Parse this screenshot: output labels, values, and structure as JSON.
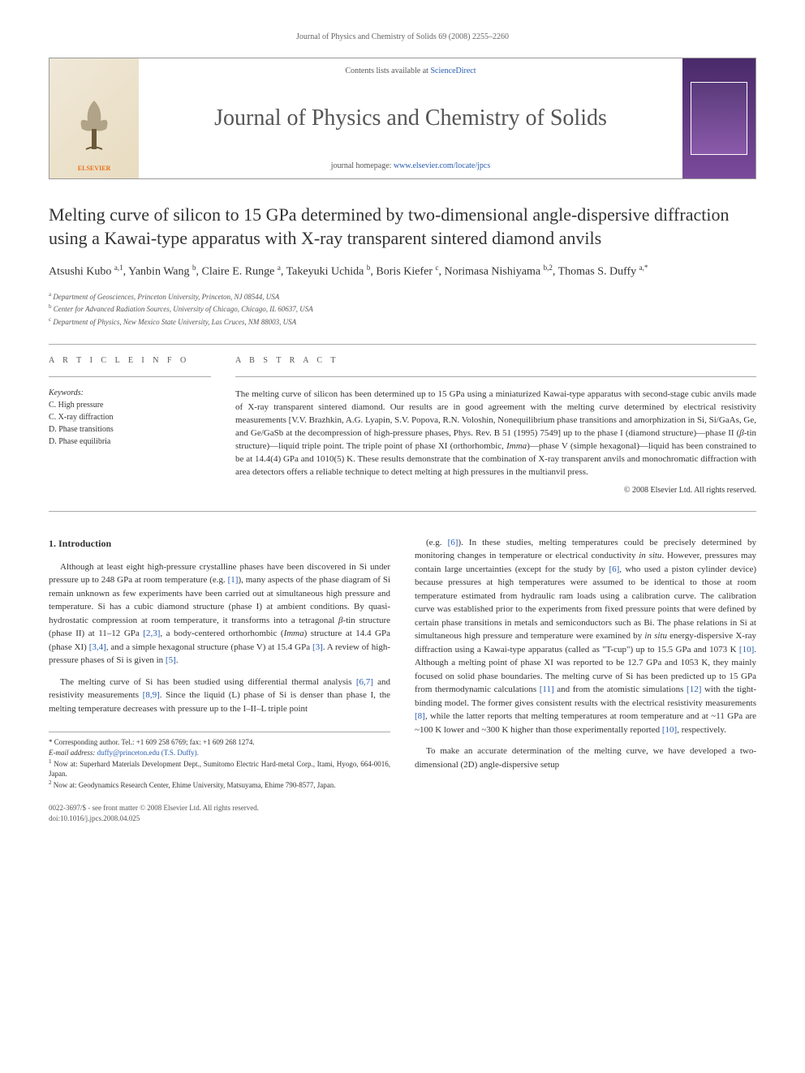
{
  "running_head": "Journal of Physics and Chemistry of Solids 69 (2008) 2255–2260",
  "banner": {
    "contents_prefix": "Contents lists available at ",
    "contents_link": "ScienceDirect",
    "journal_name": "Journal of Physics and Chemistry of Solids",
    "homepage_prefix": "journal homepage: ",
    "homepage_link": "www.elsevier.com/locate/jpcs",
    "publisher": "ELSEVIER"
  },
  "article": {
    "title": "Melting curve of silicon to 15 GPa determined by two-dimensional angle-dispersive diffraction using a Kawai-type apparatus with X-ray transparent sintered diamond anvils",
    "authors_html": "Atsushi Kubo <span class='sup'>a,1</span>, Yanbin Wang <span class='sup'>b</span>, Claire E. Runge <span class='sup'>a</span>, Takeyuki Uchida <span class='sup'>b</span>, Boris Kiefer <span class='sup'>c</span>, Norimasa Nishiyama <span class='sup'>b,2</span>, Thomas S. Duffy <span class='sup'>a,*</span>",
    "affiliations": [
      {
        "key": "a",
        "text": "Department of Geosciences, Princeton University, Princeton, NJ 08544, USA"
      },
      {
        "key": "b",
        "text": "Center for Advanced Radiation Sources, University of Chicago, Chicago, IL 60637, USA"
      },
      {
        "key": "c",
        "text": "Department of Physics, New Mexico State University, Las Cruces, NM 88003, USA"
      }
    ]
  },
  "info": {
    "section_label": "A R T I C L E  I N F O",
    "keywords_label": "Keywords:",
    "keywords": [
      "C. High pressure",
      "C. X-ray diffraction",
      "D. Phase transitions",
      "D. Phase equilibria"
    ]
  },
  "abstract": {
    "section_label": "A B S T R A C T",
    "text_html": "The melting curve of silicon has been determined up to 15 GPa using a miniaturized Kawai-type apparatus with second-stage cubic anvils made of X-ray transparent sintered diamond. Our results are in good agreement with the melting curve determined by electrical resistivity measurements [V.V. Brazhkin, A.G. Lyapin, S.V. Popova, R.N. Voloshin, Nonequilibrium phase transitions and amorphization in Si, Si/GaAs, Ge, and Ge/GaSb at the decompression of high-pressure phases, Phys. Rev. B 51 (1995) 7549] up to the phase I (diamond structure)—phase II (<span class='ital'>β</span>-tin structure)—liquid triple point. The triple point of phase XI (orthorhombic, <span class='ital'>Imma</span>)—phase V (simple hexagonal)—liquid has been constrained to be at 14.4(4) GPa and 1010(5) K. These results demonstrate that the combination of X-ray transparent anvils and monochromatic diffraction with area detectors offers a reliable technique to detect melting at high pressures in the multianvil press.",
    "copyright": "© 2008 Elsevier Ltd. All rights reserved."
  },
  "body": {
    "heading": "1.  Introduction",
    "left_paragraphs": [
      "Although at least eight high-pressure crystalline phases have been discovered in Si under pressure up to 248 GPa at room temperature (e.g. <span class='cite'>[1]</span>), many aspects of the phase diagram of Si remain unknown as few experiments have been carried out at simultaneous high pressure and temperature. Si has a cubic diamond structure (phase I) at ambient conditions. By quasi-hydrostatic compression at room temperature, it transforms into a tetragonal <span class='ital'>β</span>-tin structure (phase II) at 11–12 GPa <span class='cite'>[2,3]</span>, a body-centered orthorhombic (<span class='ital'>Imma</span>) structure at 14.4 GPa (phase XI) <span class='cite'>[3,4]</span>, and a simple hexagonal structure (phase V) at 15.4 GPa <span class='cite'>[3]</span>. A review of high-pressure phases of Si is given in <span class='cite'>[5]</span>.",
      "The melting curve of Si has been studied using differential thermal analysis <span class='cite'>[6,7]</span> and resistivity measurements <span class='cite'>[8,9]</span>. Since the liquid (L) phase of Si is denser than phase I, the melting temperature decreases with pressure up to the I–II–L triple point"
    ],
    "right_paragraphs": [
      "(e.g. <span class='cite'>[6]</span>). In these studies, melting temperatures could be precisely determined by monitoring changes in temperature or electrical conductivity <span class='ital'>in situ</span>. However, pressures may contain large uncertainties (except for the study by <span class='cite'>[6]</span>, who used a piston cylinder device) because pressures at high temperatures were assumed to be identical to those at room temperature estimated from hydraulic ram loads using a calibration curve. The calibration curve was established prior to the experiments from fixed pressure points that were defined by certain phase transitions in metals and semiconductors such as Bi. The phase relations in Si at simultaneous high pressure and temperature were examined by <span class='ital'>in situ</span> energy-dispersive X-ray diffraction using a Kawai-type apparatus (called as \"T-cup\") up to 15.5 GPa and 1073 K <span class='cite'>[10]</span>. Although a melting point of phase XI was reported to be 12.7 GPa and 1053 K, they mainly focused on solid phase boundaries. The melting curve of Si has been predicted up to 15 GPa from thermodynamic calculations <span class='cite'>[11]</span> and from the atomistic simulations <span class='cite'>[12]</span> with the tight-binding model. The former gives consistent results with the electrical resistivity measurements <span class='cite'>[8]</span>, while the latter reports that melting temperatures at room temperature and at ~11 GPa are ~100 K lower and ~300 K higher than those experimentally reported <span class='cite'>[10]</span>, respectively.",
      "To make an accurate determination of the melting curve, we have developed a two-dimensional (2D) angle-dispersive setup"
    ]
  },
  "footnotes": {
    "corr": "* Corresponding author. Tel.: +1 609 258 6769; fax: +1 609 268 1274.",
    "email_label": "E-mail address: ",
    "email": "duffy@princeton.edu (T.S. Duffy).",
    "note1": "Now at: Superhard Materials Development Dept., Sumitomo Electric Hard-metal Corp., Itami, Hyogo, 664-0016, Japan.",
    "note2": "Now at: Geodynamics Research Center, Ehime University, Matsuyama, Ehime 790-8577, Japan."
  },
  "footer": {
    "line1": "0022-3697/$ - see front matter © 2008 Elsevier Ltd. All rights reserved.",
    "line2": "doi:10.1016/j.jpcs.2008.04.025"
  },
  "colors": {
    "link": "#2a5db0",
    "text": "#333333",
    "muted": "#555555",
    "rule": "#aaaaaa",
    "elsevier_orange": "#e8711c"
  }
}
